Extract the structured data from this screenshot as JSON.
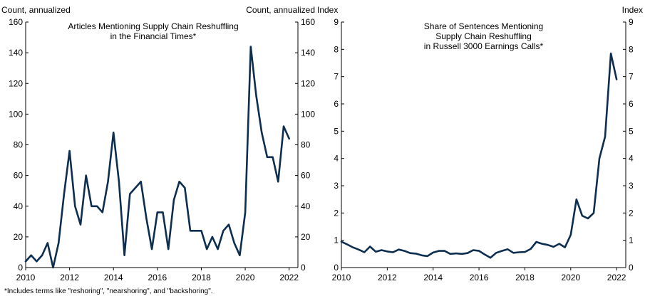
{
  "footnote": "*Includes terms like \"reshoring\", \"nearshoring\", and \"backshoring\".",
  "chart_data": [
    {
      "type": "line",
      "title_lines": [
        "Articles Mentioning Supply Chain Reshuffling",
        "in the Financial Times*"
      ],
      "ylabel_left": "Count, annualized",
      "ylabel_right": "Count, annualized",
      "ylim": [
        0,
        160
      ],
      "yticks": [
        0,
        20,
        40,
        60,
        80,
        100,
        120,
        140,
        160
      ],
      "xlim": [
        2010,
        2022.4
      ],
      "xticks": [
        2010,
        2012,
        2014,
        2016,
        2018,
        2020,
        2022
      ],
      "grid": false,
      "color": "#0d2e4e",
      "series": [
        {
          "x": [
            2010.0,
            2010.25,
            2010.5,
            2010.75,
            2011.0,
            2011.25,
            2011.5,
            2011.75,
            2012.0,
            2012.25,
            2012.5,
            2012.75,
            2013.0,
            2013.25,
            2013.5,
            2013.75,
            2014.0,
            2014.25,
            2014.5,
            2014.75,
            2015.0,
            2015.25,
            2015.5,
            2015.75,
            2016.0,
            2016.25,
            2016.5,
            2016.75,
            2017.0,
            2017.25,
            2017.5,
            2017.75,
            2018.0,
            2018.25,
            2018.5,
            2018.75,
            2019.0,
            2019.25,
            2019.5,
            2019.75,
            2020.0,
            2020.25,
            2020.5,
            2020.75,
            2021.0,
            2021.25,
            2021.5,
            2021.75,
            2022.0
          ],
          "values": [
            4,
            8,
            4,
            8,
            16,
            0,
            16,
            48,
            76,
            40,
            28,
            60,
            40,
            40,
            36,
            56,
            88,
            56,
            8,
            48,
            52,
            56,
            32,
            12,
            36,
            36,
            12,
            44,
            56,
            52,
            24,
            24,
            24,
            12,
            20,
            12,
            24,
            28,
            16,
            8,
            36,
            144,
            112,
            88,
            72,
            72,
            56,
            92,
            84
          ]
        }
      ]
    },
    {
      "type": "line",
      "title_lines": [
        "Share of Sentences Mentioning",
        "Supply Chain Reshuffling",
        "in Russell 3000 Earnings Calls*"
      ],
      "ylabel_left": "Index",
      "ylabel_right": "Index",
      "ylim": [
        0,
        9
      ],
      "yticks": [
        0,
        1,
        2,
        3,
        4,
        5,
        6,
        7,
        8,
        9
      ],
      "xlim": [
        2010,
        2022.4
      ],
      "xticks": [
        2010,
        2012,
        2014,
        2016,
        2018,
        2020,
        2022
      ],
      "grid": false,
      "color": "#0d2e4e",
      "series": [
        {
          "x": [
            2010.0,
            2010.25,
            2010.5,
            2010.75,
            2011.0,
            2011.25,
            2011.5,
            2011.75,
            2012.0,
            2012.25,
            2012.5,
            2012.75,
            2013.0,
            2013.25,
            2013.5,
            2013.75,
            2014.0,
            2014.25,
            2014.5,
            2014.75,
            2015.0,
            2015.25,
            2015.5,
            2015.75,
            2016.0,
            2016.25,
            2016.5,
            2016.75,
            2017.0,
            2017.25,
            2017.5,
            2017.75,
            2018.0,
            2018.25,
            2018.5,
            2018.75,
            2019.0,
            2019.25,
            2019.5,
            2019.75,
            2020.0,
            2020.25,
            2020.5,
            2020.75,
            2021.0,
            2021.25,
            2021.5,
            2021.75,
            2022.0
          ],
          "values": [
            0.95,
            0.85,
            0.74,
            0.66,
            0.56,
            0.77,
            0.58,
            0.64,
            0.59,
            0.56,
            0.66,
            0.61,
            0.53,
            0.51,
            0.45,
            0.42,
            0.55,
            0.61,
            0.61,
            0.5,
            0.52,
            0.5,
            0.53,
            0.64,
            0.61,
            0.48,
            0.36,
            0.54,
            0.61,
            0.67,
            0.54,
            0.56,
            0.57,
            0.68,
            0.94,
            0.87,
            0.83,
            0.76,
            0.87,
            0.74,
            1.2,
            2.5,
            1.9,
            1.8,
            2.0,
            4.0,
            4.8,
            7.85,
            6.9
          ]
        }
      ]
    }
  ]
}
